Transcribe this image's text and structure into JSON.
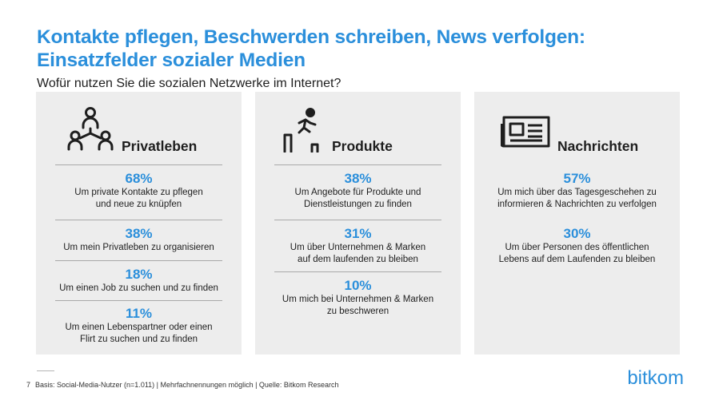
{
  "title": "Kontakte pflegen, Beschwerden schreiben, News verfolgen:\nEinsatzfelder sozialer Medien",
  "title_line1": "Kontakte pflegen, Beschwerden schreiben, News verfolgen:",
  "title_line2": "Einsatzfelder sozialer Medien",
  "subtitle": "Wofür nutzen Sie die sozialen Netzwerke im Internet?",
  "colors": {
    "accent": "#2b8fdb",
    "panel_bg": "#ededed",
    "text": "#1e1e1e"
  },
  "chart_data": {
    "type": "table",
    "unit": "%",
    "groups": [
      {
        "name": "Privatleben",
        "icon": "people-network-icon",
        "items": [
          {
            "value": 68,
            "value_label": "68%",
            "label_line1": "Um private Kontakte zu pflegen",
            "label_line2": "und neue zu knüpfen"
          },
          {
            "value": 38,
            "value_label": "38%",
            "label_line1": "Um mein Privatleben zu organisieren",
            "label_line2": ""
          },
          {
            "value": 18,
            "value_label": "18%",
            "label_line1": "Um einen Job zu suchen und zu finden",
            "label_line2": ""
          },
          {
            "value": 11,
            "value_label": "11%",
            "label_line1": "Um einen Lebenspartner oder einen",
            "label_line2": "Flirt zu suchen und zu finden"
          }
        ]
      },
      {
        "name": "Produkte",
        "icon": "running-person-icon",
        "items": [
          {
            "value": 38,
            "value_label": "38%",
            "label_line1": "Um Angebote für Produkte und",
            "label_line2": "Dienstleistungen zu finden"
          },
          {
            "value": 31,
            "value_label": "31%",
            "label_line1": "Um über Unternehmen & Marken",
            "label_line2": "auf dem laufenden zu bleiben"
          },
          {
            "value": 10,
            "value_label": "10%",
            "label_line1": "Um mich bei Unternehmen & Marken",
            "label_line2": "zu beschweren"
          }
        ]
      },
      {
        "name": "Nachrichten",
        "icon": "newspaper-icon",
        "items": [
          {
            "value": 57,
            "value_label": "57%",
            "label_line1": "Um mich über das Tagesgeschehen zu",
            "label_line2": "informieren & Nachrichten zu verfolgen"
          },
          {
            "value": 30,
            "value_label": "30%",
            "label_line1": "Um über Personen des öffentlichen",
            "label_line2": "Lebens auf dem Laufenden zu bleiben"
          }
        ]
      }
    ]
  },
  "footer": {
    "page_number": "7",
    "text": "Basis: Social-Media-Nutzer (n=1.011) | Mehrfachnennungen möglich | Quelle: Bitkom Research"
  },
  "logo": {
    "text": "bitkom"
  }
}
